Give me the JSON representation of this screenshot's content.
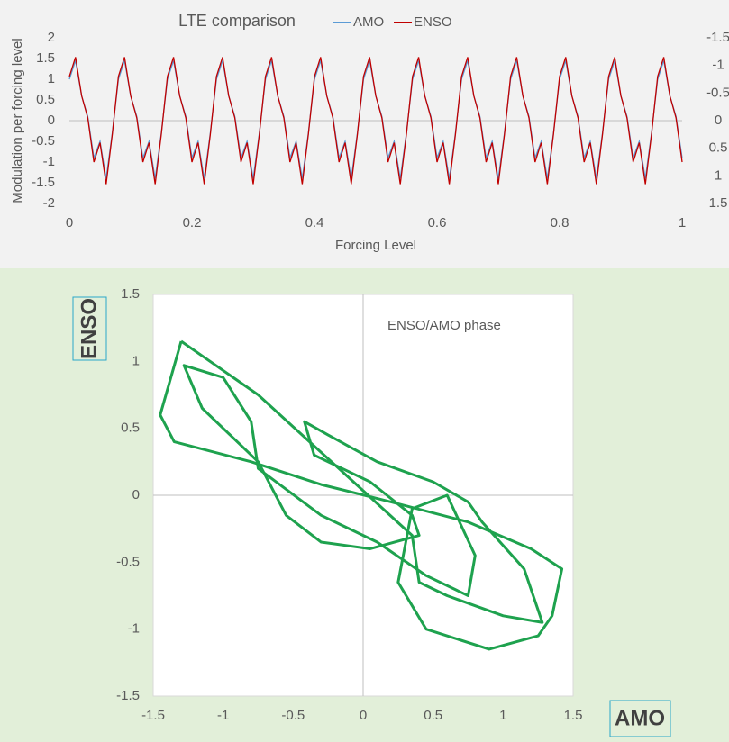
{
  "chart_data": [
    {
      "type": "line",
      "title": "LTE comparison",
      "x_label": "Forcing Level",
      "y_label": "Modulation per forcing level",
      "xlim": [
        0,
        1
      ],
      "xticks": [
        0,
        0.2,
        0.4,
        0.6,
        0.8,
        1
      ],
      "ylim": [
        -2,
        2
      ],
      "yticks": [
        -2,
        -1.5,
        -1,
        -0.5,
        0,
        0.5,
        1,
        1.5,
        2
      ],
      "y2lim": [
        1.5,
        -1.5
      ],
      "y2ticks": [
        -1.5,
        -1,
        -0.5,
        0,
        0.5,
        1,
        1.5
      ],
      "grid": false,
      "legend": "top",
      "x": [
        0,
        0.01,
        0.02,
        0.03,
        0.04,
        0.05,
        0.06,
        0.07,
        0.08,
        0.09,
        0.1,
        0.11,
        0.12,
        0.13,
        0.14,
        0.15,
        0.16,
        0.17,
        0.18,
        0.19,
        0.2,
        0.21,
        0.22,
        0.23,
        0.24,
        0.25,
        0.26,
        0.27,
        0.28,
        0.29,
        0.3,
        0.31,
        0.32,
        0.33,
        0.34,
        0.35,
        0.36,
        0.37,
        0.38,
        0.39,
        0.4,
        0.41,
        0.42,
        0.43,
        0.44,
        0.45,
        0.46,
        0.47,
        0.48,
        0.49,
        0.5,
        0.51,
        0.52,
        0.53,
        0.54,
        0.55,
        0.56,
        0.57,
        0.58,
        0.59,
        0.6,
        0.61,
        0.62,
        0.63,
        0.64,
        0.65,
        0.66,
        0.67,
        0.68,
        0.69,
        0.7,
        0.71,
        0.72,
        0.73,
        0.74,
        0.75,
        0.76,
        0.77,
        0.78,
        0.79,
        0.8,
        0.81,
        0.82,
        0.83,
        0.84,
        0.85,
        0.86,
        0.87,
        0.88,
        0.89,
        0.9,
        0.91,
        0.92,
        0.93,
        0.94,
        0.95,
        0.96,
        0.97,
        0.98,
        0.99,
        1
      ],
      "series": [
        {
          "name": "AMO",
          "color": "#5b9bd5",
          "values": [
            1,
            1.45,
            0.6,
            0.1,
            -0.9,
            -0.5,
            -1.4,
            -0.3,
            1,
            1.45,
            0.6,
            0.1,
            -0.9,
            -0.5,
            -1.4,
            -0.3,
            1,
            1.45,
            0.6,
            0.1,
            -0.9,
            -0.5,
            -1.4,
            -0.3,
            1,
            1.45,
            0.6,
            0.1,
            -0.9,
            -0.5,
            -1.4,
            -0.3,
            1,
            1.45,
            0.6,
            0.1,
            -0.9,
            -0.5,
            -1.4,
            -0.3,
            1,
            1.45,
            0.6,
            0.1,
            -0.9,
            -0.5,
            -1.4,
            -0.3,
            1,
            1.45,
            0.6,
            0.1,
            -0.9,
            -0.5,
            -1.4,
            -0.3,
            1,
            1.45,
            0.6,
            0.1,
            -0.9,
            -0.5,
            -1.4,
            -0.3,
            1,
            1.45,
            0.6,
            0.1,
            -0.9,
            -0.5,
            -1.4,
            -0.3,
            1,
            1.45,
            0.6,
            0.1,
            -0.9,
            -0.5,
            -1.4,
            -0.3,
            1,
            1.45,
            0.6,
            0.1,
            -0.9,
            -0.5,
            -1.4,
            -0.3,
            1,
            1.45,
            0.6,
            0.1,
            -0.9,
            -0.5,
            -1.4,
            -0.3,
            1,
            1.45,
            0.6,
            0.1,
            -0.9
          ]
        },
        {
          "name": "ENSO",
          "color": "#c00000",
          "axis": "y2",
          "values": [
            -0.8,
            -1.15,
            -0.45,
            -0.05,
            0.75,
            0.4,
            1.15,
            0.25,
            -0.8,
            -1.15,
            -0.45,
            -0.05,
            0.75,
            0.4,
            1.15,
            0.25,
            -0.8,
            -1.15,
            -0.45,
            -0.05,
            0.75,
            0.4,
            1.15,
            0.25,
            -0.8,
            -1.15,
            -0.45,
            -0.05,
            0.75,
            0.4,
            1.15,
            0.25,
            -0.8,
            -1.15,
            -0.45,
            -0.05,
            0.75,
            0.4,
            1.15,
            0.25,
            -0.8,
            -1.15,
            -0.45,
            -0.05,
            0.75,
            0.4,
            1.15,
            0.25,
            -0.8,
            -1.15,
            -0.45,
            -0.05,
            0.75,
            0.4,
            1.15,
            0.25,
            -0.8,
            -1.15,
            -0.45,
            -0.05,
            0.75,
            0.4,
            1.15,
            0.25,
            -0.8,
            -1.15,
            -0.45,
            -0.05,
            0.75,
            0.4,
            1.15,
            0.25,
            -0.8,
            -1.15,
            -0.45,
            -0.05,
            0.75,
            0.4,
            1.15,
            0.25,
            -0.8,
            -1.15,
            -0.45,
            -0.05,
            0.75,
            0.4,
            1.15,
            0.25,
            -0.8,
            -1.15,
            -0.45,
            -0.05,
            0.75,
            0.4,
            1.15,
            0.25,
            -0.8,
            -1.15,
            -0.45,
            -0.05,
            0.75
          ]
        }
      ]
    },
    {
      "type": "scatter",
      "annotation": "ENSO/AMO phase",
      "x_label": "AMO",
      "y_label": "ENSO",
      "color": "#1ea24e",
      "line": true,
      "xlim": [
        -1.5,
        1.5
      ],
      "xticks": [
        -1.5,
        -1,
        -0.5,
        0,
        0.5,
        1,
        1.5
      ],
      "ylim": [
        -1.5,
        1.5
      ],
      "yticks": [
        -1.5,
        -1,
        -0.5,
        0,
        0.5,
        1,
        1.5
      ],
      "x": [
        -1.3,
        -1.45,
        -1.35,
        -0.8,
        -0.3,
        0.2,
        0.75,
        1.2,
        1.42,
        1.35,
        1.25,
        0.9,
        0.45,
        0.25,
        0.35,
        0.6,
        0.8,
        0.75,
        0.45,
        0.1,
        -0.3,
        -0.75,
        -0.8,
        -1.0,
        -1.28,
        -1.15,
        -0.75,
        -0.55,
        -0.3,
        0.05,
        0.4,
        0.35,
        0.05,
        -0.35,
        -0.42,
        -0.25,
        0.1,
        0.5,
        0.75,
        0.85,
        1.15,
        1.28,
        1.0,
        0.6,
        0.4,
        0.35,
        -0.75,
        -1.3
      ],
      "values": [
        1.15,
        0.6,
        0.4,
        0.25,
        0.08,
        -0.05,
        -0.2,
        -0.4,
        -0.55,
        -0.9,
        -1.05,
        -1.15,
        -1.0,
        -0.65,
        -0.1,
        0,
        -0.45,
        -0.75,
        -0.6,
        -0.35,
        -0.15,
        0.2,
        0.55,
        0.88,
        0.97,
        0.65,
        0.25,
        -0.15,
        -0.35,
        -0.4,
        -0.3,
        -0.15,
        0.1,
        0.3,
        0.55,
        0.45,
        0.25,
        0.1,
        -0.05,
        -0.2,
        -0.55,
        -0.95,
        -0.9,
        -0.75,
        -0.65,
        -0.3,
        0.75,
        1.15
      ]
    }
  ]
}
